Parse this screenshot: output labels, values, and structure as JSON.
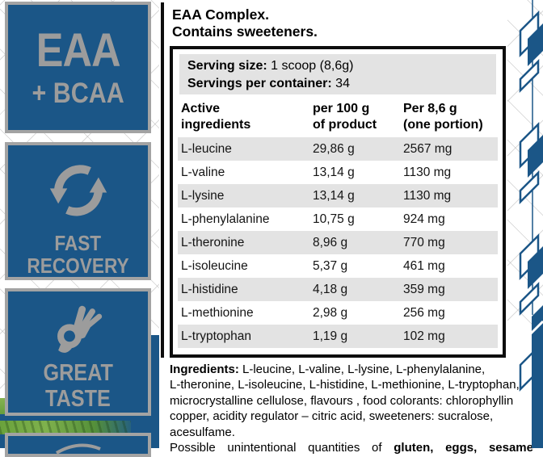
{
  "colors": {
    "brand_blue": "#1b5687",
    "badge_gray": "#9c9c9c",
    "row_gray": "#e3e3e3",
    "grass_green": "#5f9a33",
    "text_black": "#0d0d0d"
  },
  "sidebar": {
    "badges": [
      {
        "id": "eaa-bcaa",
        "line1": "EAA",
        "line2": "+ BCAA"
      },
      {
        "id": "fast-recovery",
        "icon": "refresh-arrows-icon",
        "lines": [
          "FAST",
          "RECOVERY"
        ]
      },
      {
        "id": "great-taste",
        "icon": "ok-hand-icon",
        "lines": [
          "GREAT",
          "TASTE"
        ]
      },
      {
        "id": "partial-badge",
        "icon": "swoosh-icon"
      }
    ]
  },
  "main": {
    "title": "EAA Complex.",
    "subtitle": "Contains sweeteners.",
    "serving": {
      "size_label": "Serving size:",
      "size_value": "1 scoop (8,6g)",
      "per_container_label": "Servings per container:",
      "per_container_value": "34"
    },
    "table": {
      "col1_header": [
        "Active",
        "ingredients"
      ],
      "col2_header": [
        "per 100 g",
        "of product"
      ],
      "col3_header": [
        "Per 8,6 g",
        "(one portion)"
      ],
      "rows": [
        {
          "name": "L-leucine",
          "per100": "29,86 g",
          "portion": "2567 mg"
        },
        {
          "name": "L-valine",
          "per100": "13,14 g",
          "portion": "1130 mg"
        },
        {
          "name": "L-lysine",
          "per100": "13,14 g",
          "portion": "1130 mg"
        },
        {
          "name": "L-phenylalanine",
          "per100": "10,75 g",
          "portion": "924 mg"
        },
        {
          "name": "L-theronine",
          "per100": "8,96 g",
          "portion": "770 mg"
        },
        {
          "name": "L-isoleucine",
          "per100": "5,37 g",
          "portion": "461 mg"
        },
        {
          "name": "L-histidine",
          "per100": "4,18 g",
          "portion": "359 mg"
        },
        {
          "name": "L-methionine",
          "per100": "2,98 g",
          "portion": "256 mg"
        },
        {
          "name": "L-tryptophan",
          "per100": "1,19 g",
          "portion": "102 mg"
        }
      ]
    },
    "ingredients_lines": [
      {
        "bold_head": "Ingredients:",
        "text": " L-leucine, L-valine, L-lysine, L-phenylalanine,"
      },
      {
        "text": "L-theronine, L-isoleucine, L-histidine, L-methionine, L-tryptophan,"
      },
      {
        "text": "microcrystalline cellulose, flavours , food colorants: chlorophyllin"
      },
      {
        "text": "copper, acidity regulator – citric acid, sweeteners: sucralose,"
      },
      {
        "text": "acesulfame."
      },
      {
        "text": "Possible unintentional quantities of ",
        "bold_tail": "gluten, eggs, sesame",
        "justify": true
      }
    ]
  }
}
